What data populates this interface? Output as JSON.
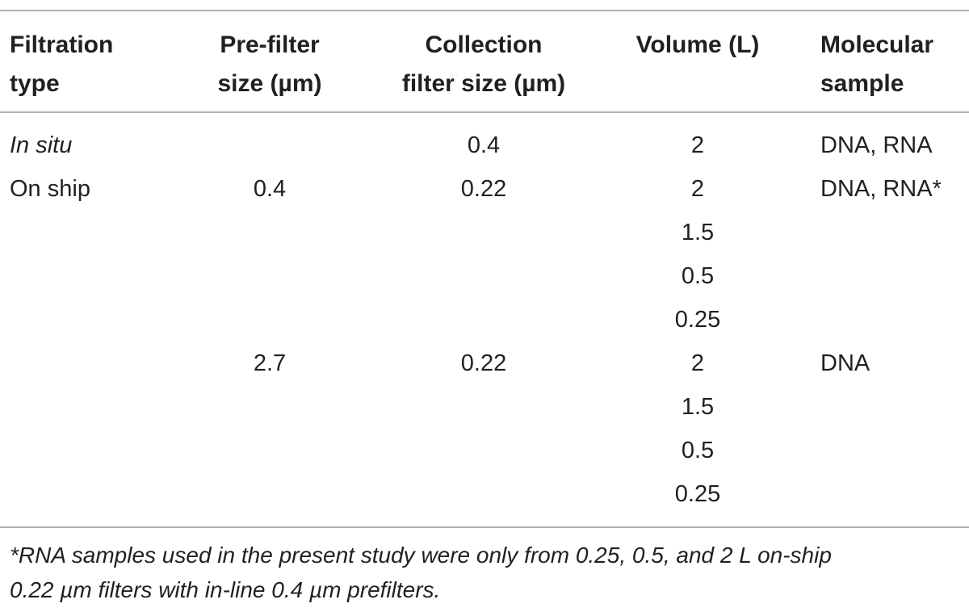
{
  "table": {
    "headers": [
      {
        "line1": "Filtration",
        "line2": "type"
      },
      {
        "line1": "Pre-filter",
        "line2": "size (µm)"
      },
      {
        "line1": "Collection",
        "line2": "filter size (µm)"
      },
      {
        "line1": "Volume (L)",
        "line2": ""
      },
      {
        "line1": "Molecular",
        "line2": "sample"
      }
    ],
    "rows": [
      {
        "filtration_type": "In situ",
        "prefilter": "",
        "collection": "0.4",
        "volume": "2",
        "sample": "DNA, RNA"
      },
      {
        "filtration_type": "On ship",
        "prefilter": "0.4",
        "collection": "0.22",
        "volume": "2",
        "sample": "DNA, RNA*"
      },
      {
        "filtration_type": "",
        "prefilter": "",
        "collection": "",
        "volume": "1.5",
        "sample": ""
      },
      {
        "filtration_type": "",
        "prefilter": "",
        "collection": "",
        "volume": "0.5",
        "sample": ""
      },
      {
        "filtration_type": "",
        "prefilter": "",
        "collection": "",
        "volume": "0.25",
        "sample": ""
      },
      {
        "filtration_type": "",
        "prefilter": "2.7",
        "collection": "0.22",
        "volume": "2",
        "sample": "DNA"
      },
      {
        "filtration_type": "",
        "prefilter": "",
        "collection": "",
        "volume": "1.5",
        "sample": ""
      },
      {
        "filtration_type": "",
        "prefilter": "",
        "collection": "",
        "volume": "0.5",
        "sample": ""
      },
      {
        "filtration_type": "",
        "prefilter": "",
        "collection": "",
        "volume": "0.25",
        "sample": ""
      }
    ]
  },
  "footnote": {
    "line1": "*RNA samples used in the present study were only from 0.25, 0.5, and 2 L on-ship",
    "line2": "0.22 µm filters with in-line 0.4 µm prefilters."
  }
}
